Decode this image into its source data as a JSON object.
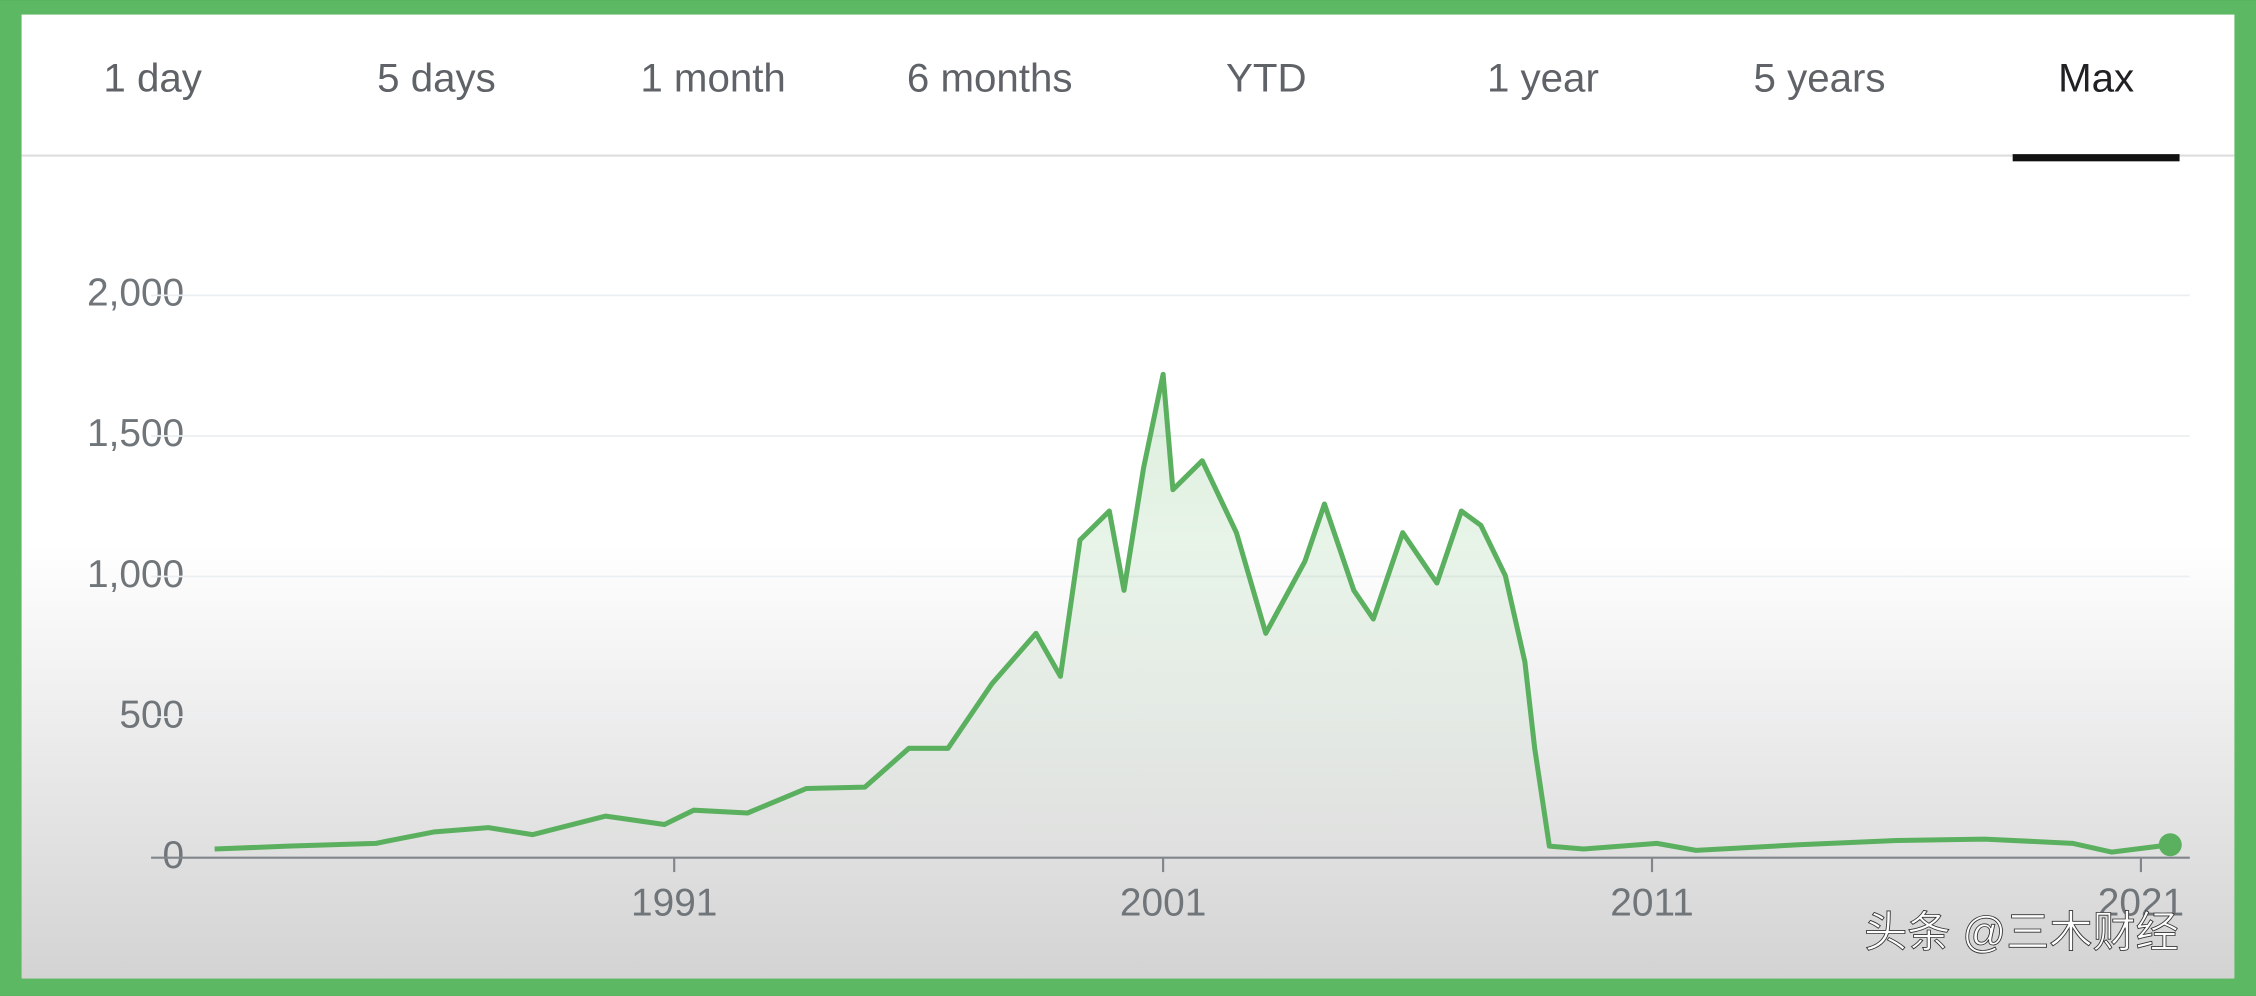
{
  "tabs": [
    {
      "label": "1 day",
      "selected": false
    },
    {
      "label": "5 days",
      "selected": false
    },
    {
      "label": "1 month",
      "selected": false
    },
    {
      "label": "6 months",
      "selected": false
    },
    {
      "label": "YTD",
      "selected": false
    },
    {
      "label": "1 year",
      "selected": false
    },
    {
      "label": "5 years",
      "selected": false
    },
    {
      "label": "Max",
      "selected": true
    }
  ],
  "chart_data": {
    "type": "line",
    "color": "#5bb05f",
    "grid": true,
    "x": [
      1981.6,
      1983.1,
      1984.9,
      1986.1,
      1987.2,
      1988.1,
      1989.6,
      1990.8,
      1991.4,
      1992.5,
      1993.7,
      1994.9,
      1995.8,
      1996.6,
      1997.5,
      1998.4,
      1998.9,
      1999.3,
      1999.9,
      2000.2,
      2000.6,
      2001.0,
      2001.2,
      2001.8,
      2002.5,
      2003.1,
      2003.9,
      2004.3,
      2004.9,
      2005.3,
      2005.9,
      2006.6,
      2007.1,
      2007.5,
      2008.0,
      2008.4,
      2008.6,
      2008.9,
      2009.6,
      2011.1,
      2011.9,
      2014.0,
      2016.0,
      2017.8,
      2019.6,
      2020.4,
      2021.6
    ],
    "values": [
      31,
      41,
      51,
      92,
      107,
      82,
      148,
      118,
      169,
      159,
      246,
      251,
      389,
      389,
      619,
      798,
      645,
      1130,
      1233,
      951,
      1386,
      1719,
      1309,
      1412,
      1156,
      798,
      1054,
      1258,
      951,
      849,
      1156,
      977,
      1233,
      1182,
      1003,
      696,
      389,
      41,
      31,
      51,
      26,
      46,
      61,
      66,
      51,
      20,
      46
    ],
    "xlim": [
      1980.3,
      2022.0
    ],
    "ylim": [
      0,
      2180
    ],
    "xticks": [
      1991,
      2001,
      2011,
      2021
    ],
    "yticks": [
      0,
      500,
      {
        "value": 1000,
        "label": "1,000"
      },
      {
        "value": 1500,
        "label": "1,500"
      },
      {
        "value": 2000,
        "label": "2,000"
      }
    ]
  },
  "watermark": "头条 @三木财经"
}
